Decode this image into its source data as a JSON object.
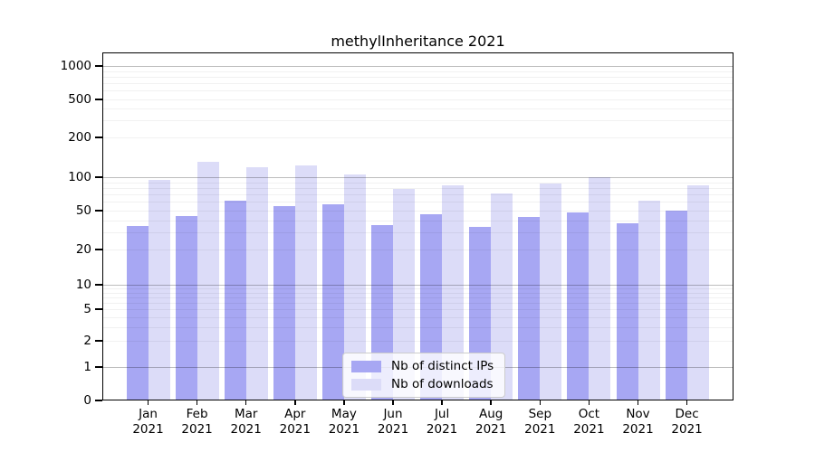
{
  "chart_data": {
    "type": "bar",
    "title": "methylInheritance 2021",
    "year": "2021",
    "months": [
      "Jan",
      "Feb",
      "Mar",
      "Apr",
      "May",
      "Jun",
      "Jul",
      "Aug",
      "Sep",
      "Oct",
      "Nov",
      "Dec"
    ],
    "series": [
      {
        "name": "Nb of distinct IPs",
        "color": "#a7a7f3",
        "values": [
          35,
          44,
          61,
          55,
          57,
          36,
          46,
          34,
          43,
          48,
          37,
          50
        ]
      },
      {
        "name": "Nb of downloads",
        "color": "#dcdcf8",
        "values": [
          95,
          130,
          118,
          122,
          105,
          78,
          84,
          71,
          87,
          100,
          61,
          84
        ]
      }
    ],
    "y_axis": {
      "scale": "log",
      "ticks": [
        0,
        1,
        2,
        5,
        10,
        20,
        50,
        100,
        200,
        500,
        1000
      ],
      "top_value": 1000
    },
    "x_axis": {
      "label_format": "month-over-year"
    },
    "legend": {
      "position": "lower-center"
    },
    "grid": "horizontal major and minor"
  }
}
